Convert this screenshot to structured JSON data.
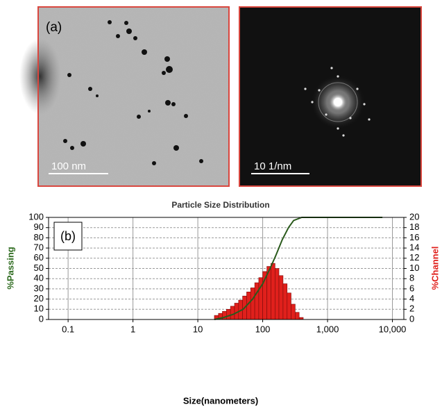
{
  "images": {
    "left_label": "(a)",
    "left_scale": "100 nm",
    "right_scale": "10 1/nm"
  },
  "chart_data": {
    "type": "histogram",
    "title": "Particle Size Distribution",
    "panel_label": "(b)",
    "xlabel": "Size(nanometers)",
    "ylabel": "%Passing",
    "y2label": "%Channel",
    "xscale": "log",
    "xlim": [
      0.05,
      15000
    ],
    "xticks": [
      0.1,
      1,
      10,
      100,
      {
        "value": 1000,
        "label": "1,000"
      },
      {
        "value": 10000,
        "label": "10,000"
      }
    ],
    "ylim": [
      0,
      100
    ],
    "yticks": [
      0,
      10,
      20,
      30,
      40,
      50,
      60,
      70,
      80,
      90,
      100
    ],
    "y2lim": [
      0,
      20
    ],
    "y2ticks": [
      0,
      2,
      4,
      6,
      8,
      10,
      12,
      14,
      16,
      18,
      20
    ],
    "grid": true,
    "ylabel_color": "#2e6b1f",
    "y2label_color": "#e0201c",
    "bins": [
      18,
      20.8,
      23.9,
      27.6,
      31.9,
      36.8,
      42.5,
      49.0,
      56.6,
      65.3,
      75.4,
      87.0,
      100,
      116,
      134,
      155,
      178,
      206,
      238,
      274,
      317,
      365,
      422
    ],
    "values": [
      0.8,
      1.2,
      1.6,
      2.0,
      2.6,
      3.2,
      3.8,
      4.6,
      5.4,
      6.2,
      7.2,
      8.2,
      9.4,
      10.4,
      11.0,
      10.0,
      8.6,
      7.0,
      5.2,
      3.0,
      1.4,
      0.4
    ],
    "color": "#e0201c",
    "axis": "y2",
    "overlay": {
      "type": "line",
      "color": "#2a5a1c",
      "x": [
        18,
        25,
        35,
        50,
        70,
        100,
        130,
        160,
        200,
        250,
        300,
        400,
        1000,
        7000
      ],
      "values": [
        0,
        2,
        5,
        10,
        20,
        35,
        50,
        63,
        78,
        90,
        97,
        100,
        100,
        100
      ]
    }
  }
}
